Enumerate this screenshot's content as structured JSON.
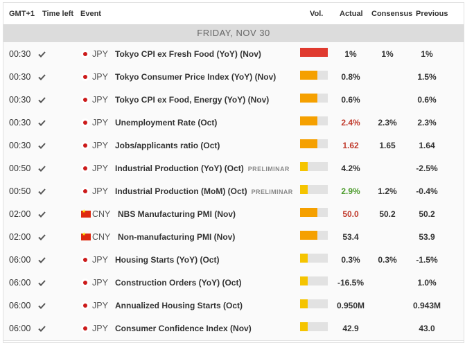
{
  "header": {
    "timezone": "GMT+1",
    "time_left": "Time left",
    "event": "Event",
    "volatility": "Vol.",
    "actual": "Actual",
    "consensus": "Consensus",
    "previous": "Previous"
  },
  "day": "FRIDAY, NOV 30",
  "colors": {
    "high": "#e03a2f",
    "medium": "#f5a000",
    "low": "#f5c400",
    "negative": "#c0392b",
    "positive": "#4a9a2a"
  },
  "events": [
    {
      "time": "00:30",
      "flag": "jp",
      "currency": "JPY",
      "name": "Tokyo CPI ex Fresh Food (YoY) (Nov)",
      "tag": "",
      "volatility": "high",
      "actual": "1%",
      "actual_trend": "neutral",
      "consensus": "1%",
      "previous": "1%"
    },
    {
      "time": "00:30",
      "flag": "jp",
      "currency": "JPY",
      "name": "Tokyo Consumer Price Index (YoY) (Nov)",
      "tag": "",
      "volatility": "medium",
      "actual": "0.8%",
      "actual_trend": "neutral",
      "consensus": "",
      "previous": "1.5%"
    },
    {
      "time": "00:30",
      "flag": "jp",
      "currency": "JPY",
      "name": "Tokyo CPI ex Food, Energy (YoY) (Nov)",
      "tag": "",
      "volatility": "medium",
      "actual": "0.6%",
      "actual_trend": "neutral",
      "consensus": "",
      "previous": "0.6%"
    },
    {
      "time": "00:30",
      "flag": "jp",
      "currency": "JPY",
      "name": "Unemployment Rate (Oct)",
      "tag": "",
      "volatility": "medium",
      "actual": "2.4%",
      "actual_trend": "negative",
      "consensus": "2.3%",
      "previous": "2.3%"
    },
    {
      "time": "00:30",
      "flag": "jp",
      "currency": "JPY",
      "name": "Jobs/applicants ratio (Oct)",
      "tag": "",
      "volatility": "medium",
      "actual": "1.62",
      "actual_trend": "negative",
      "consensus": "1.65",
      "previous": "1.64"
    },
    {
      "time": "00:50",
      "flag": "jp",
      "currency": "JPY",
      "name": "Industrial Production (YoY) (Oct)",
      "tag": "PRELIMINAR",
      "volatility": "low",
      "actual": "4.2%",
      "actual_trend": "neutral",
      "consensus": "",
      "previous": "-2.5%"
    },
    {
      "time": "00:50",
      "flag": "jp",
      "currency": "JPY",
      "name": "Industrial Production (MoM) (Oct)",
      "tag": "PRELIMINAR",
      "volatility": "low",
      "actual": "2.9%",
      "actual_trend": "positive",
      "consensus": "1.2%",
      "previous": "-0.4%"
    },
    {
      "time": "02:00",
      "flag": "cn",
      "currency": "CNY",
      "name": "NBS Manufacturing PMI (Nov)",
      "tag": "",
      "volatility": "medium",
      "actual": "50.0",
      "actual_trend": "negative",
      "consensus": "50.2",
      "previous": "50.2"
    },
    {
      "time": "02:00",
      "flag": "cn",
      "currency": "CNY",
      "name": "Non-manufacturing PMI (Nov)",
      "tag": "",
      "volatility": "medium",
      "actual": "53.4",
      "actual_trend": "neutral",
      "consensus": "",
      "previous": "53.9"
    },
    {
      "time": "06:00",
      "flag": "jp",
      "currency": "JPY",
      "name": "Housing Starts (YoY) (Oct)",
      "tag": "",
      "volatility": "low",
      "actual": "0.3%",
      "actual_trend": "neutral",
      "consensus": "0.3%",
      "previous": "-1.5%"
    },
    {
      "time": "06:00",
      "flag": "jp",
      "currency": "JPY",
      "name": "Construction Orders (YoY) (Oct)",
      "tag": "",
      "volatility": "low",
      "actual": "-16.5%",
      "actual_trend": "neutral",
      "consensus": "",
      "previous": "1.0%"
    },
    {
      "time": "06:00",
      "flag": "jp",
      "currency": "JPY",
      "name": "Annualized Housing Starts (Oct)",
      "tag": "",
      "volatility": "low",
      "actual": "0.950M",
      "actual_trend": "neutral",
      "consensus": "",
      "previous": "0.943M"
    },
    {
      "time": "06:00",
      "flag": "jp",
      "currency": "JPY",
      "name": "Consumer Confidence Index (Nov)",
      "tag": "",
      "volatility": "low",
      "actual": "42.9",
      "actual_trend": "neutral",
      "consensus": "",
      "previous": "43.0"
    }
  ]
}
